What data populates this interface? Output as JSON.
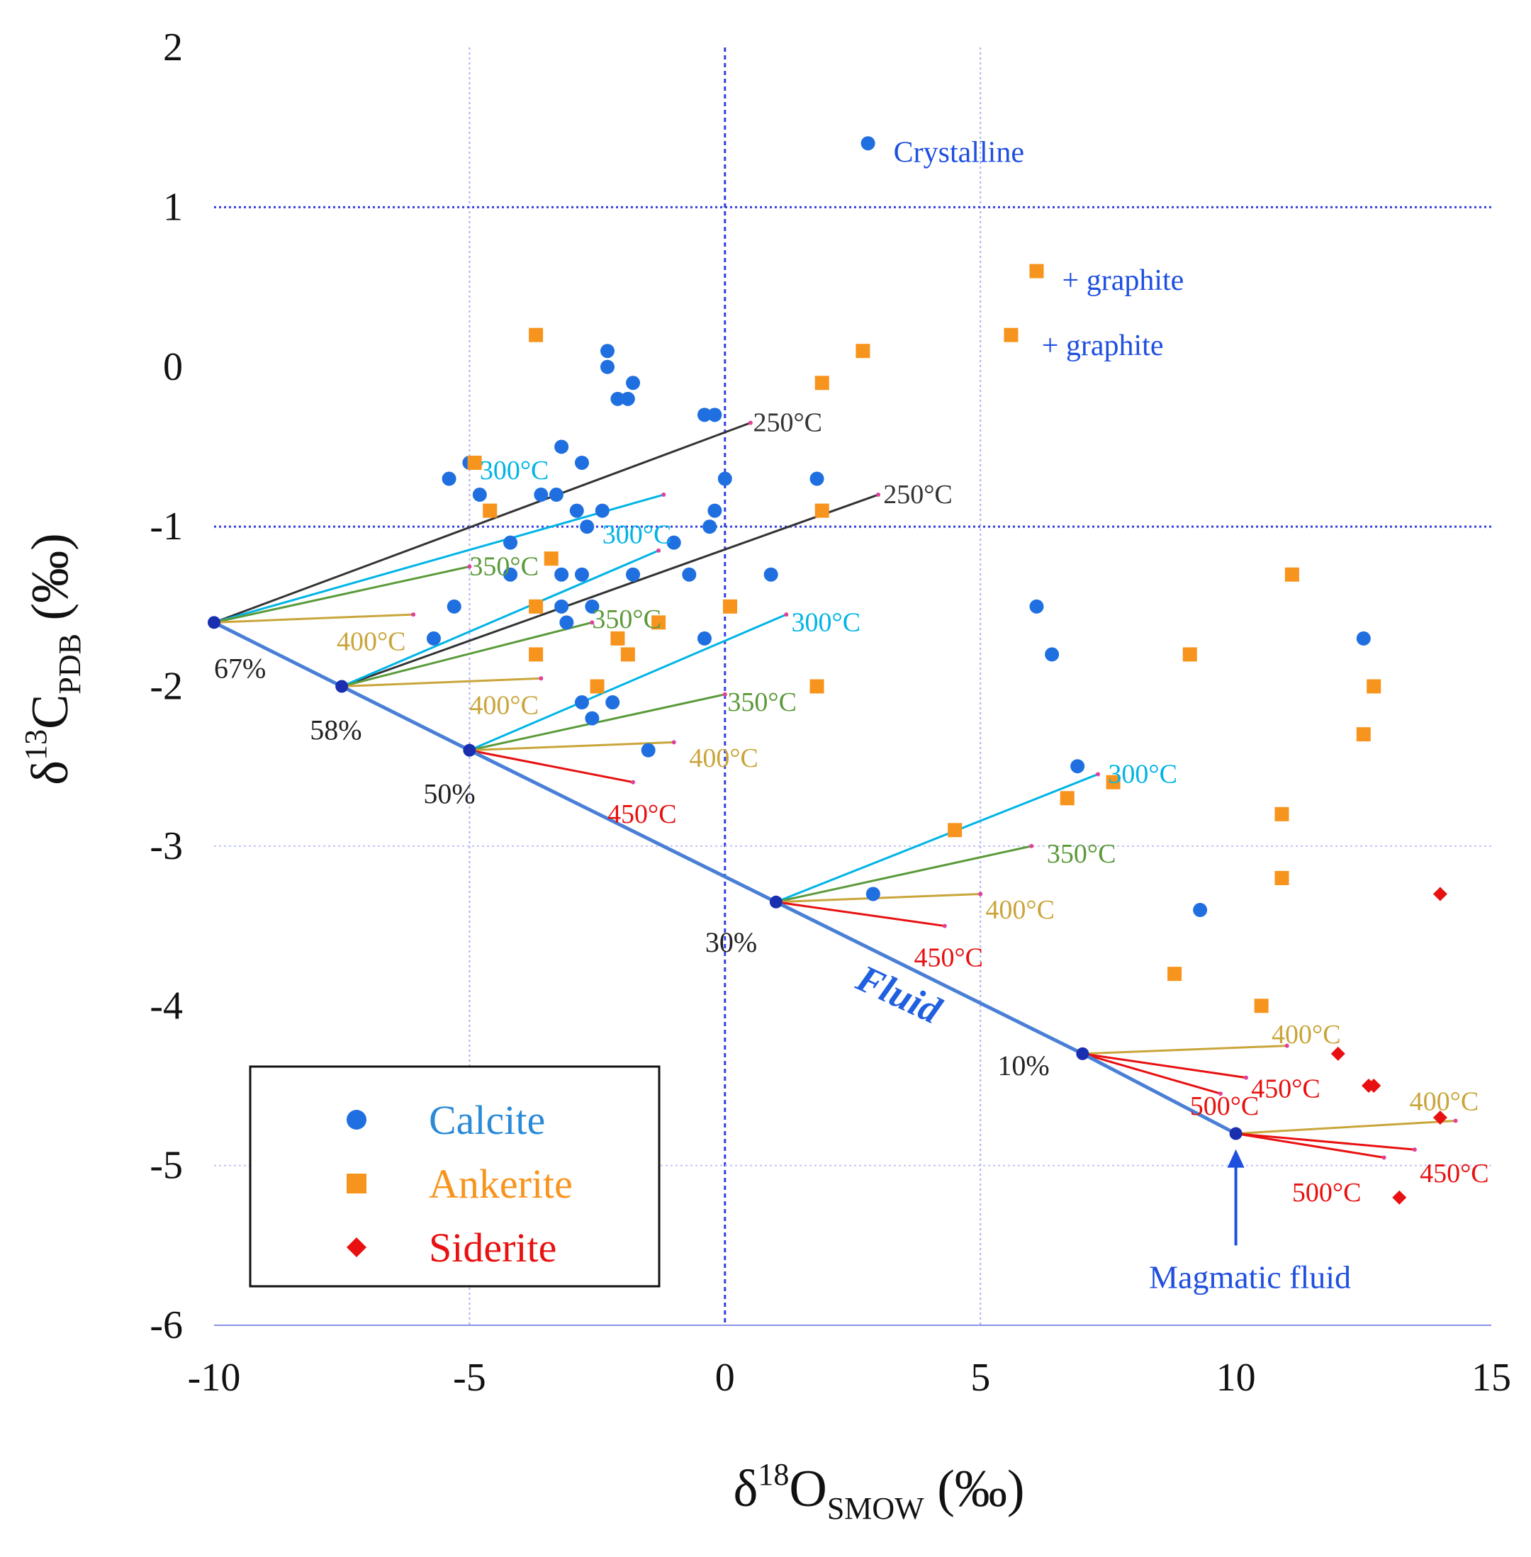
{
  "chart_data": {
    "type": "scatter",
    "xlabel": {
      "main": "δ",
      "sup": "18",
      "sub_main": "O",
      "sub": "SMOW",
      "tail": " (‰)"
    },
    "ylabel": {
      "main": "δ",
      "sup": "13",
      "sub_main": "C",
      "sub": "PDB",
      "tail": " (‰)"
    },
    "xlim": [
      -10,
      15
    ],
    "ylim": [
      -6,
      2
    ],
    "xticks": [
      "-10",
      "-5",
      "0",
      "5",
      "10",
      "15"
    ],
    "yticks": [
      "2",
      "1",
      "0",
      "-1",
      "-2",
      "-3",
      "-4",
      "-5",
      "-6"
    ],
    "colors": {
      "calcite": "#1f6fe0",
      "ankerite": "#f7941d",
      "siderite": "#e81010",
      "fluid": "#4a7fd6",
      "grid": "#3340e0",
      "c250": "#333333",
      "c300": "#00b4e6",
      "c350": "#5a9a3a",
      "c400": "#c9a53a",
      "c450": "#e81010",
      "c500": "#e81010",
      "annot_blue": "#1f4fe0"
    },
    "legend": {
      "position": "bottom-left",
      "entries": [
        {
          "label": "Calcite",
          "marker": "circle",
          "color": "#1f6fe0",
          "text_color": "#2b8ad6"
        },
        {
          "label": "Ankerite",
          "marker": "square",
          "color": "#f7941d",
          "text_color": "#f7941d"
        },
        {
          "label": "Siderite",
          "marker": "diamond",
          "color": "#e81010",
          "text_color": "#e81010"
        }
      ]
    },
    "series": [
      {
        "name": "Calcite",
        "marker": "circle",
        "points": [
          [
            2.8,
            1.4
          ],
          [
            -2.3,
            0.1
          ],
          [
            -2.3,
            0.0
          ],
          [
            -1.8,
            -0.1
          ],
          [
            -2.1,
            -0.2
          ],
          [
            -1.9,
            -0.2
          ],
          [
            -0.4,
            -0.3
          ],
          [
            -0.2,
            -0.3
          ],
          [
            -3.2,
            -0.5
          ],
          [
            -5.0,
            -0.6
          ],
          [
            -2.8,
            -0.6
          ],
          [
            -5.4,
            -0.7
          ],
          [
            0.0,
            -0.7
          ],
          [
            1.8,
            -0.7
          ],
          [
            -4.8,
            -0.8
          ],
          [
            -3.6,
            -0.8
          ],
          [
            -3.3,
            -0.8
          ],
          [
            -2.9,
            -0.9
          ],
          [
            -2.4,
            -0.9
          ],
          [
            -0.2,
            -0.9
          ],
          [
            -2.7,
            -1.0
          ],
          [
            -0.3,
            -1.0
          ],
          [
            -4.2,
            -1.1
          ],
          [
            -1.0,
            -1.1
          ],
          [
            -4.2,
            -1.3
          ],
          [
            -3.2,
            -1.3
          ],
          [
            -2.8,
            -1.3
          ],
          [
            -1.8,
            -1.3
          ],
          [
            -0.7,
            -1.3
          ],
          [
            0.9,
            -1.3
          ],
          [
            -5.3,
            -1.5
          ],
          [
            -3.2,
            -1.5
          ],
          [
            -2.6,
            -1.5
          ],
          [
            6.1,
            -1.5
          ],
          [
            -3.1,
            -1.6
          ],
          [
            -5.7,
            -1.7
          ],
          [
            -0.4,
            -1.7
          ],
          [
            12.5,
            -1.7
          ],
          [
            6.4,
            -1.8
          ],
          [
            -2.8,
            -2.1
          ],
          [
            -2.2,
            -2.1
          ],
          [
            -2.6,
            -2.2
          ],
          [
            -1.5,
            -2.4
          ],
          [
            6.9,
            -2.5
          ],
          [
            2.9,
            -3.3
          ],
          [
            9.3,
            -3.4
          ]
        ]
      },
      {
        "name": "Ankerite",
        "marker": "square",
        "points": [
          [
            6.1,
            0.6
          ],
          [
            5.6,
            0.2
          ],
          [
            -3.7,
            0.2
          ],
          [
            2.7,
            0.1
          ],
          [
            1.9,
            -0.1
          ],
          [
            -4.9,
            -0.6
          ],
          [
            -4.6,
            -0.9
          ],
          [
            1.9,
            -0.9
          ],
          [
            -3.4,
            -1.2
          ],
          [
            11.1,
            -1.3
          ],
          [
            0.1,
            -1.5
          ],
          [
            -3.7,
            -1.5
          ],
          [
            -1.3,
            -1.6
          ],
          [
            -2.1,
            -1.7
          ],
          [
            -1.9,
            -1.8
          ],
          [
            -3.7,
            -1.8
          ],
          [
            9.1,
            -1.8
          ],
          [
            1.8,
            -2.0
          ],
          [
            -2.5,
            -2.0
          ],
          [
            12.7,
            -2.0
          ],
          [
            12.5,
            -2.3
          ],
          [
            7.6,
            -2.6
          ],
          [
            6.7,
            -2.7
          ],
          [
            10.9,
            -2.8
          ],
          [
            4.5,
            -2.9
          ],
          [
            10.9,
            -3.2
          ],
          [
            8.8,
            -3.8
          ],
          [
            10.5,
            -4.0
          ]
        ]
      },
      {
        "name": "Siderite",
        "marker": "diamond",
        "points": [
          [
            14.0,
            -3.3
          ],
          [
            12.0,
            -4.3
          ],
          [
            12.6,
            -4.5
          ],
          [
            12.7,
            -4.5
          ],
          [
            14.0,
            -4.7
          ],
          [
            13.2,
            -5.2
          ]
        ]
      }
    ],
    "fluid_line": {
      "label": "Fluid",
      "points": [
        [
          -10,
          -1.6
        ],
        [
          -7.5,
          -2.0
        ],
        [
          -5,
          -2.4
        ],
        [
          1,
          -3.35
        ],
        [
          7,
          -4.3
        ],
        [
          10,
          -4.8
        ]
      ]
    },
    "mixing_points": [
      {
        "label": "67%",
        "x": -10,
        "y": -1.6
      },
      {
        "label": "58%",
        "x": -7.5,
        "y": -2.0
      },
      {
        "label": "50%",
        "x": -5,
        "y": -2.4
      },
      {
        "label": "30%",
        "x": 1,
        "y": -3.35
      },
      {
        "label": "10%",
        "x": 7,
        "y": -4.3
      },
      {
        "label": "",
        "x": 10,
        "y": -4.8
      }
    ],
    "temperature_lines": [
      {
        "from": [
          -10,
          -1.6
        ],
        "to": [
          0.5,
          -0.35
        ],
        "label": "250°C",
        "temp": "250",
        "lx": 0.55,
        "ly": -0.35
      },
      {
        "from": [
          -10,
          -1.6
        ],
        "to": [
          -1.2,
          -0.8
        ],
        "label": "300°C",
        "temp": "300",
        "lx": -4.8,
        "ly": -0.65
      },
      {
        "from": [
          -10,
          -1.6
        ],
        "to": [
          -5.0,
          -1.25
        ],
        "label": "350°C",
        "temp": "350",
        "lx": -5.0,
        "ly": -1.25
      },
      {
        "from": [
          -10,
          -1.6
        ],
        "to": [
          -6.1,
          -1.55
        ],
        "label": "400°C",
        "temp": "400",
        "lx": -7.6,
        "ly": -1.72
      },
      {
        "from": [
          -7.5,
          -2.0
        ],
        "to": [
          3.0,
          -0.8
        ],
        "label": "250°C",
        "temp": "250",
        "lx": 3.1,
        "ly": -0.8
      },
      {
        "from": [
          -7.5,
          -2.0
        ],
        "to": [
          -1.3,
          -1.15
        ],
        "label": "300°C",
        "temp": "300",
        "lx": -2.4,
        "ly": -1.05
      },
      {
        "from": [
          -7.5,
          -2.0
        ],
        "to": [
          -2.6,
          -1.6
        ],
        "label": "350°C",
        "temp": "350",
        "lx": -2.6,
        "ly": -1.58
      },
      {
        "from": [
          -7.5,
          -2.0
        ],
        "to": [
          -3.6,
          -1.95
        ],
        "label": "400°C",
        "temp": "400",
        "lx": -5.0,
        "ly": -2.12
      },
      {
        "from": [
          -5,
          -2.4
        ],
        "to": [
          1.2,
          -1.55
        ],
        "label": "300°C",
        "temp": "300",
        "lx": 1.3,
        "ly": -1.6
      },
      {
        "from": [
          -5,
          -2.4
        ],
        "to": [
          0.0,
          -2.05
        ],
        "label": "350°C",
        "temp": "350",
        "lx": 0.05,
        "ly": -2.1
      },
      {
        "from": [
          -5,
          -2.4
        ],
        "to": [
          -1.0,
          -2.35
        ],
        "label": "400°C",
        "temp": "400",
        "lx": -0.7,
        "ly": -2.45
      },
      {
        "from": [
          -5,
          -2.4
        ],
        "to": [
          -1.8,
          -2.6
        ],
        "label": "450°C",
        "temp": "450",
        "lx": -2.3,
        "ly": -2.8
      },
      {
        "from": [
          1,
          -3.35
        ],
        "to": [
          7.3,
          -2.55
        ],
        "label": "300°C",
        "temp": "300",
        "lx": 7.5,
        "ly": -2.55
      },
      {
        "from": [
          1,
          -3.35
        ],
        "to": [
          6.0,
          -3.0
        ],
        "label": "350°C",
        "temp": "350",
        "lx": 6.3,
        "ly": -3.05
      },
      {
        "from": [
          1,
          -3.35
        ],
        "to": [
          5.0,
          -3.3
        ],
        "label": "400°C",
        "temp": "400",
        "lx": 5.1,
        "ly": -3.4
      },
      {
        "from": [
          1,
          -3.35
        ],
        "to": [
          4.3,
          -3.5
        ],
        "label": "450°C",
        "temp": "450",
        "lx": 3.7,
        "ly": -3.7
      },
      {
        "from": [
          7,
          -4.3
        ],
        "to": [
          11.0,
          -4.25
        ],
        "label": "400°C",
        "temp": "400",
        "lx": 10.7,
        "ly": -4.18
      },
      {
        "from": [
          7,
          -4.3
        ],
        "to": [
          10.2,
          -4.45
        ],
        "label": "450°C",
        "temp": "450",
        "lx": 10.3,
        "ly": -4.52
      },
      {
        "from": [
          7,
          -4.3
        ],
        "to": [
          9.7,
          -4.55
        ],
        "label": "500°C",
        "temp": "500",
        "lx": 9.1,
        "ly": -4.63
      },
      {
        "from": [
          10,
          -4.8
        ],
        "to": [
          14.3,
          -4.72
        ],
        "label": "400°C",
        "temp": "400",
        "lx": 13.4,
        "ly": -4.6
      },
      {
        "from": [
          10,
          -4.8
        ],
        "to": [
          13.5,
          -4.9
        ],
        "label": "450°C",
        "temp": "450",
        "lx": 13.6,
        "ly": -5.05
      },
      {
        "from": [
          10,
          -4.8
        ],
        "to": [
          12.9,
          -4.95
        ],
        "label": "500°C",
        "temp": "500",
        "lx": 11.1,
        "ly": -5.17
      }
    ],
    "annotations": [
      {
        "text": "Crystalline",
        "x": 3.3,
        "y": 1.35,
        "color": "annot_blue"
      },
      {
        "text": "+ graphite",
        "x": 6.6,
        "y": 0.55,
        "color": "annot_blue"
      },
      {
        "text": "+ graphite",
        "x": 6.2,
        "y": 0.14,
        "color": "annot_blue"
      }
    ],
    "magmatic_fluid": {
      "text": "Magmatic fluid",
      "x": 10,
      "y_from": -5.5,
      "y_to": -4.88
    }
  }
}
